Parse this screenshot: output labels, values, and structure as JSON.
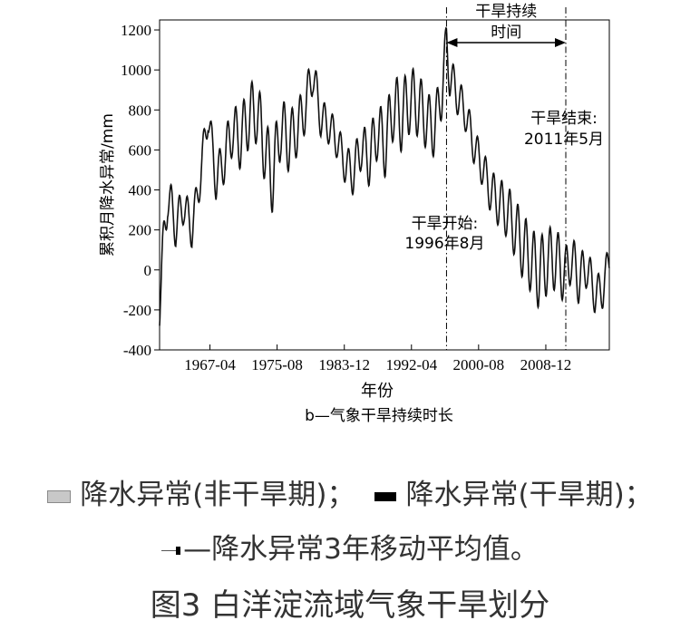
{
  "chart_data": {
    "type": "line",
    "xlabel": "年份",
    "ylabel": "累积月降水异常/mm",
    "subtitle": "b—气象干旱持续时长",
    "ylim": [
      -400,
      1250
    ],
    "yticks": [
      -400,
      -200,
      0,
      200,
      400,
      600,
      800,
      1000,
      1200
    ],
    "xlim": [
      1961.0,
      2016.8
    ],
    "xticks": [
      {
        "label": "1967-04",
        "value": 1967.25
      },
      {
        "label": "1975-08",
        "value": 1975.58
      },
      {
        "label": "1983-12",
        "value": 1983.92
      },
      {
        "label": "1992-04",
        "value": 1992.25
      },
      {
        "label": "2000-08",
        "value": 2000.58
      },
      {
        "label": "2008-12",
        "value": 2008.92
      }
    ],
    "series": [
      {
        "name": "累积月降水异常",
        "x": [
          1961.0,
          1962.0,
          1963.0,
          1964.0,
          1965.0,
          1966.0,
          1967.0,
          1968.0,
          1969.0,
          1970.0,
          1971.0,
          1972.0,
          1973.0,
          1974.0,
          1975.0,
          1976.0,
          1977.0,
          1978.0,
          1979.0,
          1980.0,
          1981.0,
          1982.0,
          1983.0,
          1984.0,
          1985.0,
          1986.0,
          1987.0,
          1988.0,
          1989.0,
          1990.0,
          1991.0,
          1992.0,
          1993.0,
          1994.0,
          1995.0,
          1996.0,
          1996.6,
          1997.0,
          1998.0,
          1999.0,
          2000.0,
          2001.0,
          2002.0,
          2003.0,
          2004.0,
          2005.0,
          2006.0,
          2007.0,
          2008.0,
          2009.0,
          2010.0,
          2011.4,
          2012.0,
          2013.0,
          2014.0,
          2015.0,
          2016.0,
          2016.8
        ],
        "y": [
          -150,
          380,
          220,
          330,
          200,
          450,
          780,
          450,
          550,
          700,
          650,
          760,
          800,
          620,
          450,
          720,
          640,
          700,
          800,
          990,
          760,
          720,
          650,
          530,
          480,
          620,
          550,
          700,
          620,
          820,
          760,
          850,
          830,
          760,
          700,
          880,
          1140,
          970,
          870,
          780,
          620,
          520,
          400,
          340,
          300,
          220,
          120,
          60,
          -20,
          40,
          60,
          -30,
          70,
          -50,
          20,
          -120,
          -100,
          60
        ]
      }
    ],
    "annotations": [
      {
        "text": "干旱持续\n时间",
        "span": [
          1996.6,
          2011.4
        ]
      },
      {
        "text": "干旱开始:\n1996年8月",
        "x": 1996.6
      },
      {
        "text": "干旱结束:\n2011年5月",
        "x": 2011.4
      }
    ],
    "grid": false
  },
  "legend": {
    "nondrought_label": "降水异常(非干旱期)；",
    "drought_label": "降水异常(干旱期)；",
    "ma_label": "—降水异常3年移动平均值。"
  },
  "caption": "图3 白洋淀流域气象干旱划分"
}
